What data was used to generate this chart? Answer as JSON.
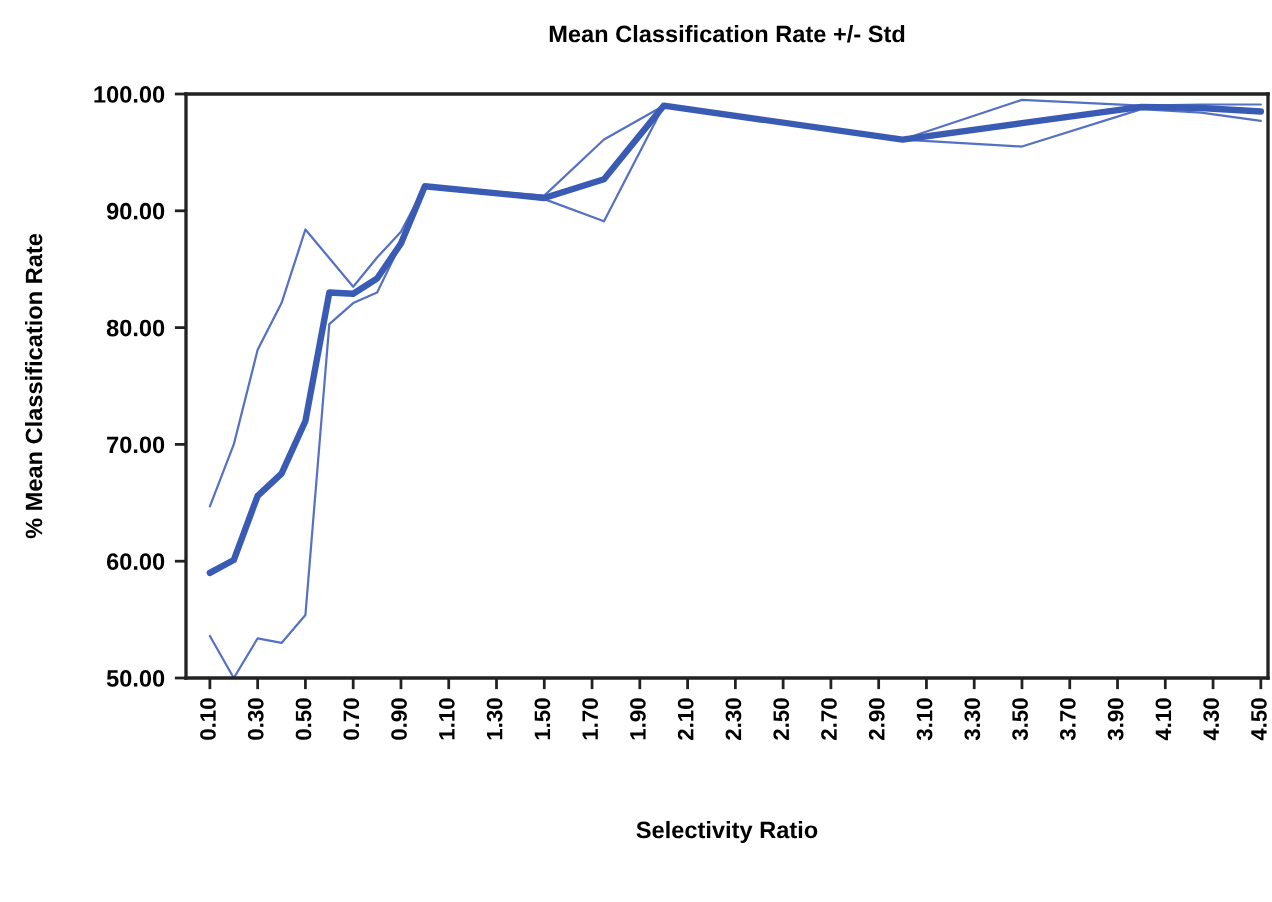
{
  "chart_data": {
    "type": "line",
    "title": "Mean Classification Rate +/- Std",
    "xlabel": "Selectivity Ratio",
    "ylabel": "% Mean Classification Rate",
    "xlim": [
      0.0,
      4.53
    ],
    "xticks": [
      {
        "value": 0.1,
        "label": "0.10"
      },
      {
        "value": 0.3,
        "label": "0.30"
      },
      {
        "value": 0.5,
        "label": "0.50"
      },
      {
        "value": 0.7,
        "label": "0.70"
      },
      {
        "value": 0.9,
        "label": "0.90"
      },
      {
        "value": 1.1,
        "label": "1.10"
      },
      {
        "value": 1.3,
        "label": "1.30"
      },
      {
        "value": 1.5,
        "label": "1.50"
      },
      {
        "value": 1.7,
        "label": "1.70"
      },
      {
        "value": 1.9,
        "label": "1.90"
      },
      {
        "value": 2.1,
        "label": "2.10"
      },
      {
        "value": 2.3,
        "label": "2.30"
      },
      {
        "value": 2.5,
        "label": "2.50"
      },
      {
        "value": 2.7,
        "label": "2.70"
      },
      {
        "value": 2.9,
        "label": "2.90"
      },
      {
        "value": 3.1,
        "label": "3.10"
      },
      {
        "value": 3.3,
        "label": "3.30"
      },
      {
        "value": 3.5,
        "label": "3.50"
      },
      {
        "value": 3.7,
        "label": "3.70"
      },
      {
        "value": 3.9,
        "label": "3.90"
      },
      {
        "value": 4.1,
        "label": "4.10"
      },
      {
        "value": 4.3,
        "label": "4.30"
      },
      {
        "value": 4.5,
        "label": "4.50"
      }
    ],
    "ylim": [
      50,
      100
    ],
    "yticks": [
      {
        "value": 50,
        "label": "50.00"
      },
      {
        "value": 60,
        "label": "60.00"
      },
      {
        "value": 70,
        "label": "70.00"
      },
      {
        "value": 80,
        "label": "80.00"
      },
      {
        "value": 90,
        "label": "90.00"
      },
      {
        "value": 100,
        "label": "100.00"
      }
    ],
    "grid": false,
    "marker": "none",
    "line_style": "solid",
    "series": [
      {
        "color": "#3a5bb4",
        "x": [
          0.1,
          0.2,
          0.3,
          0.4,
          0.5,
          0.6,
          0.7,
          0.8,
          0.9,
          1.0,
          1.5,
          1.75,
          2.0,
          3.0,
          3.5,
          4.0,
          4.25,
          4.5
        ],
        "values": [
          59.0,
          60.1,
          65.6,
          67.5,
          72.0,
          83.0,
          82.9,
          84.2,
          87.2,
          92.1,
          91.1,
          92.7,
          99.0,
          96.1,
          97.5,
          98.9,
          98.8,
          98.5
        ]
      },
      {
        "color": "#5571c4",
        "x": [
          0.1,
          0.2,
          0.3,
          0.4,
          0.5,
          0.7,
          0.8,
          0.9,
          1.0,
          1.5,
          1.75,
          2.0,
          3.0,
          3.5,
          4.0,
          4.25,
          4.5
        ],
        "values": [
          64.7,
          70.0,
          78.1,
          82.1,
          88.4,
          83.5,
          86.0,
          88.2,
          92.1,
          91.3,
          96.1,
          99.0,
          96.1,
          99.5,
          99.0,
          99.1,
          99.1
        ]
      },
      {
        "color": "#5571c4",
        "x": [
          0.1,
          0.2,
          0.3,
          0.4,
          0.5,
          0.6,
          0.7,
          0.8,
          0.9,
          1.0,
          1.5,
          1.75,
          2.0,
          3.0,
          3.5,
          4.0,
          4.25,
          4.5
        ],
        "values": [
          53.6,
          50.0,
          53.4,
          53.0,
          55.4,
          80.3,
          82.1,
          83.0,
          87.2,
          92.1,
          91.0,
          89.1,
          99.0,
          96.1,
          95.5,
          98.7,
          98.4,
          97.7
        ]
      }
    ]
  }
}
